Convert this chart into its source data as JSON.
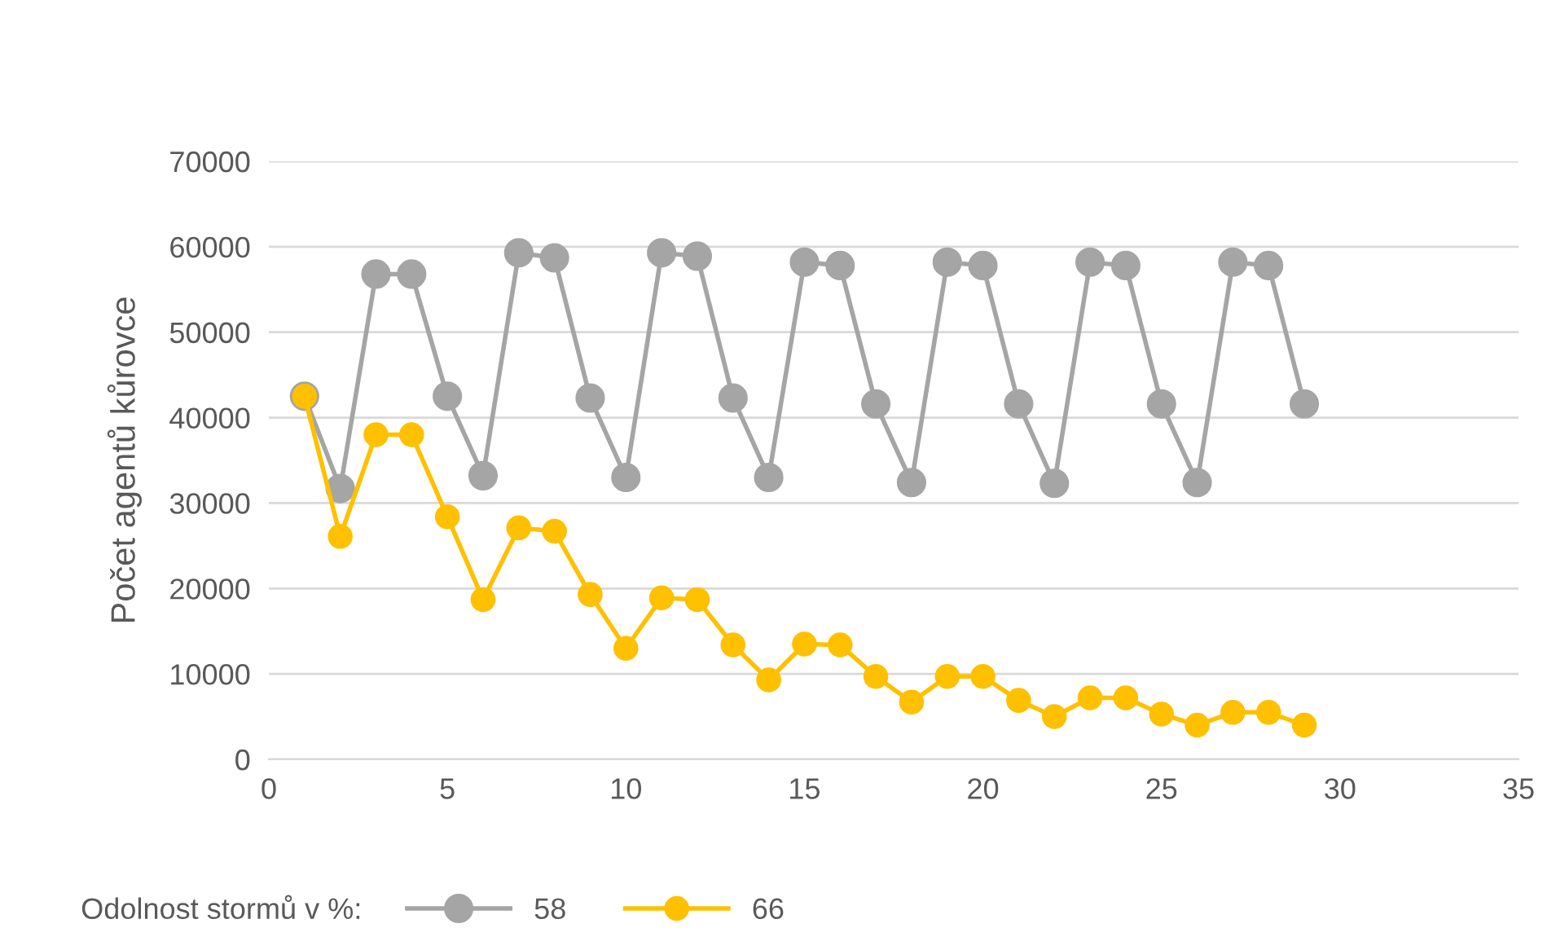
{
  "chart_data": {
    "type": "line",
    "ylabel": "Počet agentů kůrovce",
    "legend_title": "Odolnost stormů v %:",
    "x": [
      1,
      2,
      3,
      4,
      5,
      6,
      7,
      8,
      9,
      10,
      11,
      12,
      13,
      14,
      15,
      16,
      17,
      18,
      19,
      20,
      21,
      22,
      23,
      24,
      25,
      26,
      27,
      28,
      29
    ],
    "series": [
      {
        "name": "58",
        "color": "#a5a5a5",
        "values": [
          42500,
          31700,
          56800,
          56800,
          42500,
          33200,
          59300,
          58700,
          42300,
          33000,
          59300,
          58900,
          42300,
          33000,
          58200,
          57800,
          41600,
          32400,
          58200,
          57800,
          41600,
          32300,
          58200,
          57800,
          41600,
          32400,
          58200,
          57800,
          41600
        ]
      },
      {
        "name": "66",
        "color": "#ffc000",
        "values": [
          42500,
          26100,
          38000,
          38000,
          28400,
          18700,
          27100,
          26700,
          19300,
          13000,
          18900,
          18700,
          13400,
          9300,
          13500,
          13400,
          9700,
          6700,
          9700,
          9700,
          6900,
          5000,
          7200,
          7200,
          5300,
          4000,
          5500,
          5500,
          4000
        ]
      }
    ],
    "xlim": [
      0,
      35
    ],
    "xticks": [
      0,
      5,
      10,
      15,
      20,
      25,
      30,
      35
    ],
    "ylim": [
      0,
      70000
    ],
    "yticks": [
      0,
      10000,
      20000,
      30000,
      40000,
      50000,
      60000,
      70000
    ],
    "grid": "y",
    "legend": "bottom",
    "marker": "circle",
    "line_style": "solid"
  }
}
